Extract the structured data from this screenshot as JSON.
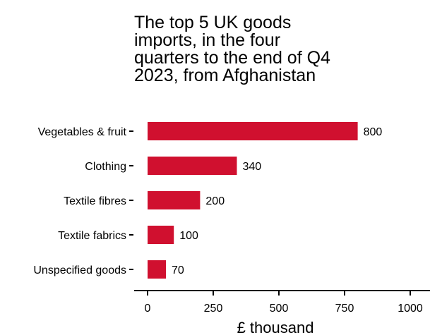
{
  "chart_data": {
    "type": "bar",
    "orientation": "horizontal",
    "title_lines": [
      "The top 5 UK goods",
      "imports, in the four",
      "quarters to the end of Q4",
      "2023, from Afghanistan"
    ],
    "categories": [
      "Vegetables & fruit",
      "Clothing",
      "Textile fibres",
      "Textile fabrics",
      "Unspecified goods"
    ],
    "values": [
      800,
      340,
      200,
      100,
      70
    ],
    "value_labels": [
      "800",
      "340",
      "200",
      "100",
      "70"
    ],
    "xlabel": "£ thousand",
    "xlim": [
      0,
      1000
    ],
    "x_ticks": [
      0,
      250,
      500,
      750,
      1000
    ],
    "x_tick_labels": [
      "0",
      "250",
      "500",
      "750",
      "1000"
    ],
    "bar_color": "#d0102f",
    "grid": false,
    "legend": "none"
  }
}
